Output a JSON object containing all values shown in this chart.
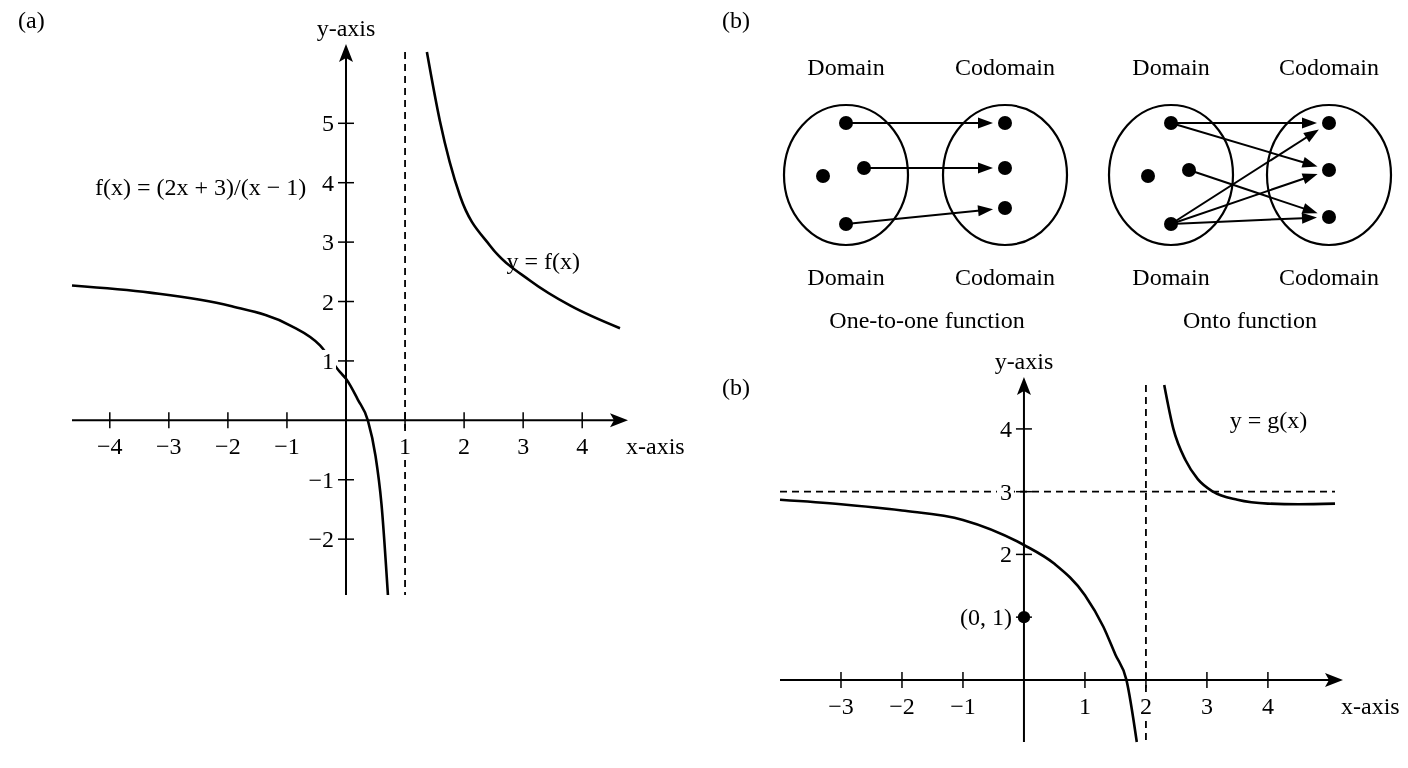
{
  "chart_data": [
    {
      "type": "line",
      "title": "(a)",
      "xlabel": "x-axis",
      "ylabel": "y-axis",
      "xlim": [
        -4.64,
        4.64
      ],
      "ylim": [
        -2.94,
        6.2
      ],
      "xticks": [
        -4,
        -3,
        -2,
        -1,
        1,
        2,
        3,
        4
      ],
      "yticks": [
        -2,
        -1,
        1,
        2,
        3,
        4,
        5
      ],
      "series": [
        {
          "name": "y = f(x)",
          "color": "#000000",
          "x": [
            -4.64,
            -3.32,
            -1.97,
            -0.95,
            -0.44,
            -0.1,
            0,
            0.2,
            0.37,
            0.5,
            0.6,
            0.71,
            1,
            1.37,
            1.59,
            1.93,
            2.44,
            3.12,
            3.8,
            4.64
          ],
          "values": [
            2.27,
            2.15,
            1.93,
            1.6,
            1.26,
            0.81,
            0.7,
            0.35,
            0,
            -0.6,
            -1.4,
            -2.94,
            null,
            6.2,
            5.04,
            3.78,
            2.94,
            2.35,
            1.93,
            1.55
          ]
        }
      ],
      "ref_lines": [
        {
          "axis": "x",
          "value": 1,
          "color": "#000000",
          "line_style": "dashed"
        }
      ],
      "annotations": [
        "f(x) = (2x + 3)/(x − 1)"
      ],
      "grid": false,
      "legend": false,
      "marker": "none"
    },
    {
      "type": "other",
      "title": "(b)",
      "annotations": [
        "Domain",
        "Codomain",
        "Domain",
        "Codomain",
        "Domain",
        "Codomain",
        "Domain",
        "Codomain",
        "One-to-one function",
        "Onto function"
      ]
    },
    {
      "type": "line",
      "title": "(b)",
      "xlabel": "x-axis",
      "ylabel": "y-axis",
      "xlim": [
        -4.0,
        5.1
      ],
      "ylim": [
        -0.99,
        4.7
      ],
      "xticks": [
        -3,
        -2,
        -1,
        1,
        2,
        3,
        4
      ],
      "yticks": [
        {
          "value": 1,
          "label": null
        },
        2,
        3,
        4
      ],
      "series": [
        {
          "name": "y = g(x)",
          "color": "#000000",
          "x": [
            -4,
            -3,
            -2,
            -1,
            0,
            0.5,
            1,
            1.3,
            1.5,
            1.68,
            1.85,
            2,
            2.3,
            2.45,
            2.65,
            2.85,
            3.1,
            3.5,
            4,
            4.5,
            5.1
          ],
          "values": [
            2.87,
            2.8,
            2.7,
            2.55,
            2.15,
            1.85,
            1.35,
            0.85,
            0.4,
            0,
            -0.99,
            null,
            4.7,
            4.0,
            3.5,
            3.2,
            3.0,
            2.87,
            2.81,
            2.8,
            2.81
          ]
        },
        {
          "type": "scatter",
          "color": "#000000",
          "x": [
            0
          ],
          "values": [
            1
          ],
          "marker": "circle"
        }
      ],
      "ref_lines": [
        {
          "axis": "x",
          "value": 2,
          "color": "#000000",
          "line_style": "dashed"
        },
        {
          "axis": "y",
          "value": 3,
          "color": "#000000",
          "line_style": "dashed"
        }
      ],
      "annotations": [
        {
          "text": "(0, 1)",
          "x": 0,
          "y": 1
        }
      ],
      "grid": false,
      "legend": false,
      "marker": "none"
    }
  ]
}
